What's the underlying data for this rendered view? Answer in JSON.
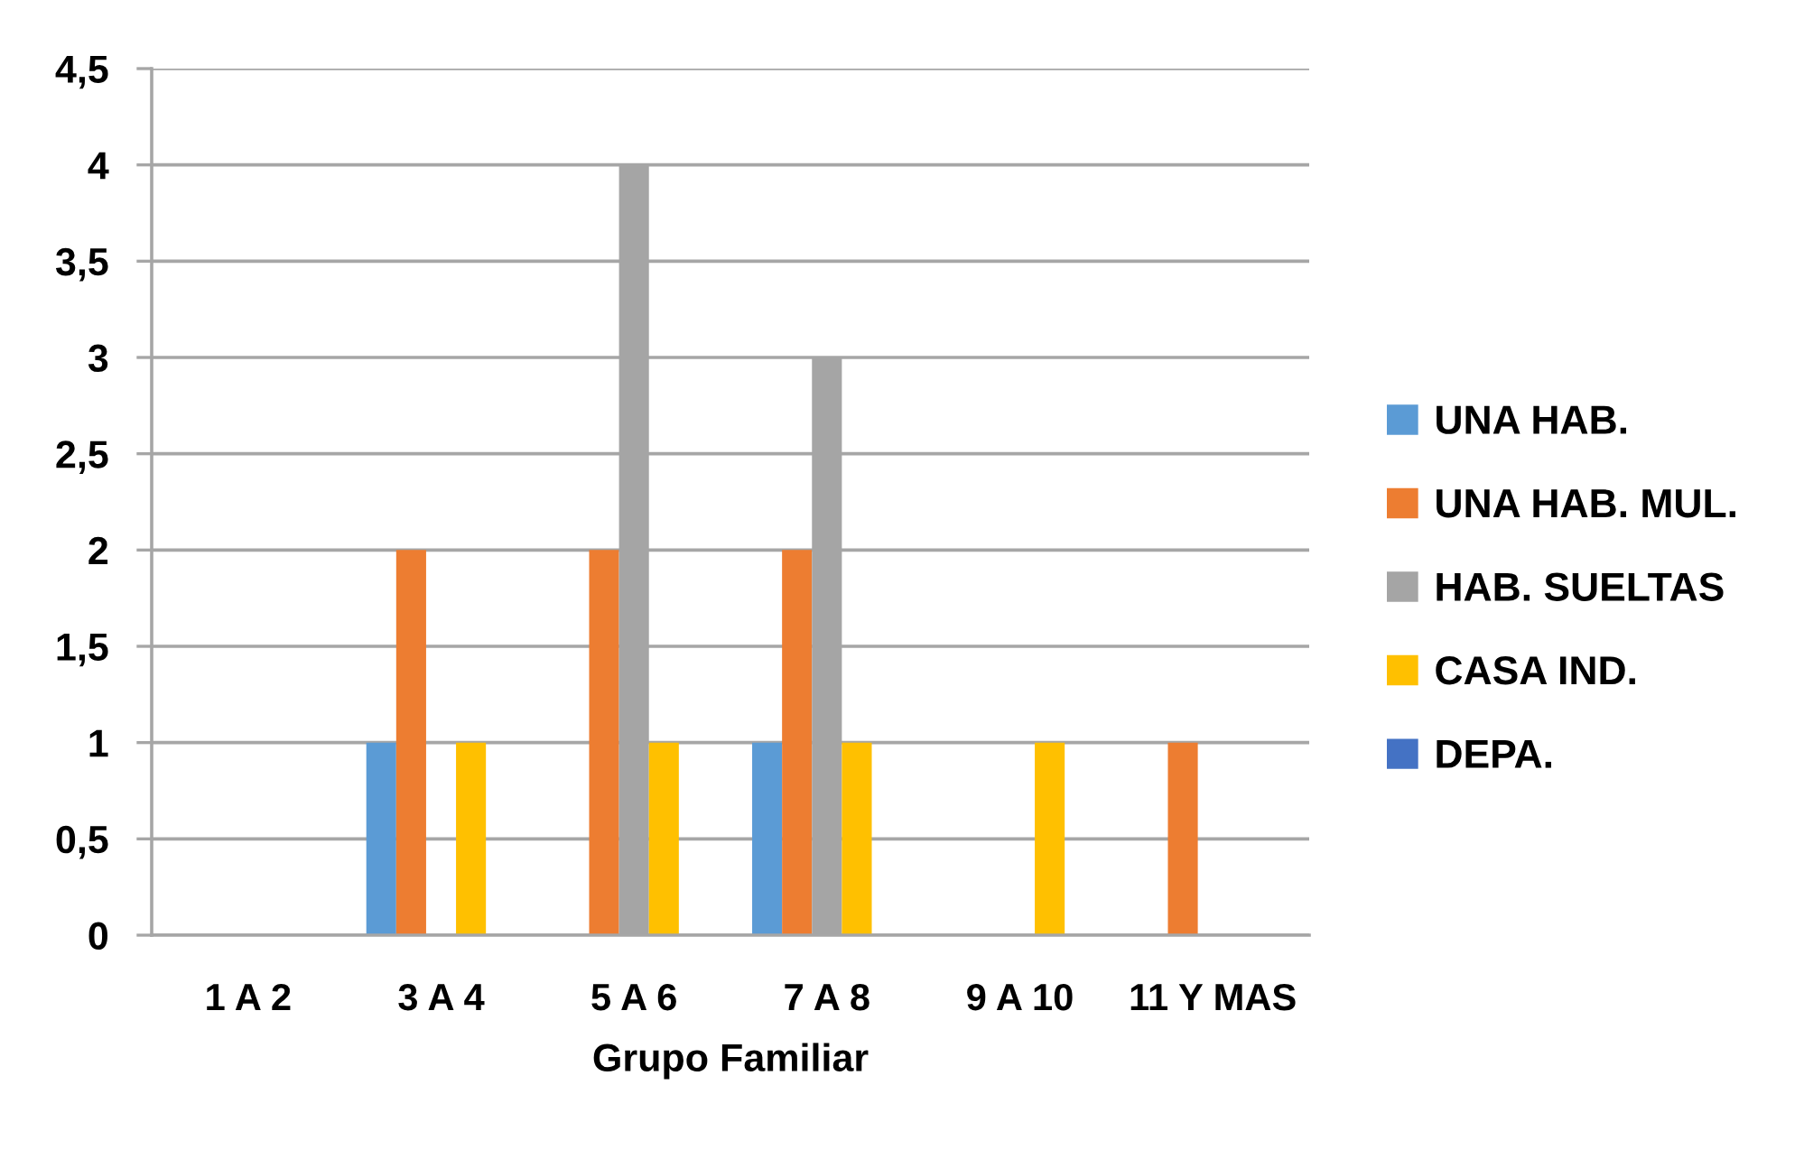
{
  "chart_data": {
    "type": "bar",
    "xlabel": "Grupo Familiar",
    "categories": [
      "1 A 2",
      "3 A 4",
      "5 A 6",
      "7 A 8",
      "9 A 10",
      "11 Y MAS"
    ],
    "series": [
      {
        "name": "UNA HAB.",
        "color": "#5b9bd5",
        "values": [
          null,
          1,
          null,
          1,
          null,
          null
        ]
      },
      {
        "name": "UNA HAB. MUL.",
        "color": "#ed7d31",
        "values": [
          null,
          2,
          2,
          2,
          null,
          1
        ]
      },
      {
        "name": "HAB. SUELTAS",
        "color": "#a5a5a5",
        "values": [
          null,
          null,
          4,
          3,
          null,
          null
        ]
      },
      {
        "name": "CASA IND.",
        "color": "#ffc000",
        "values": [
          null,
          1,
          1,
          1,
          1,
          null
        ]
      },
      {
        "name": "DEPA.",
        "color": "#4472c4",
        "values": [
          null,
          null,
          null,
          null,
          null,
          null
        ]
      }
    ],
    "ylim": [
      0,
      4.5
    ],
    "yticks": [
      0,
      {
        "value": 0.5,
        "label": "0,5"
      },
      1,
      {
        "value": 1.5,
        "label": "1,5"
      },
      2,
      {
        "value": 2.5,
        "label": "2,5"
      },
      3,
      {
        "value": 3.5,
        "label": "3,5"
      },
      4,
      {
        "value": 4.5,
        "label": "4,5"
      }
    ],
    "grid": "y",
    "legend": "right"
  }
}
